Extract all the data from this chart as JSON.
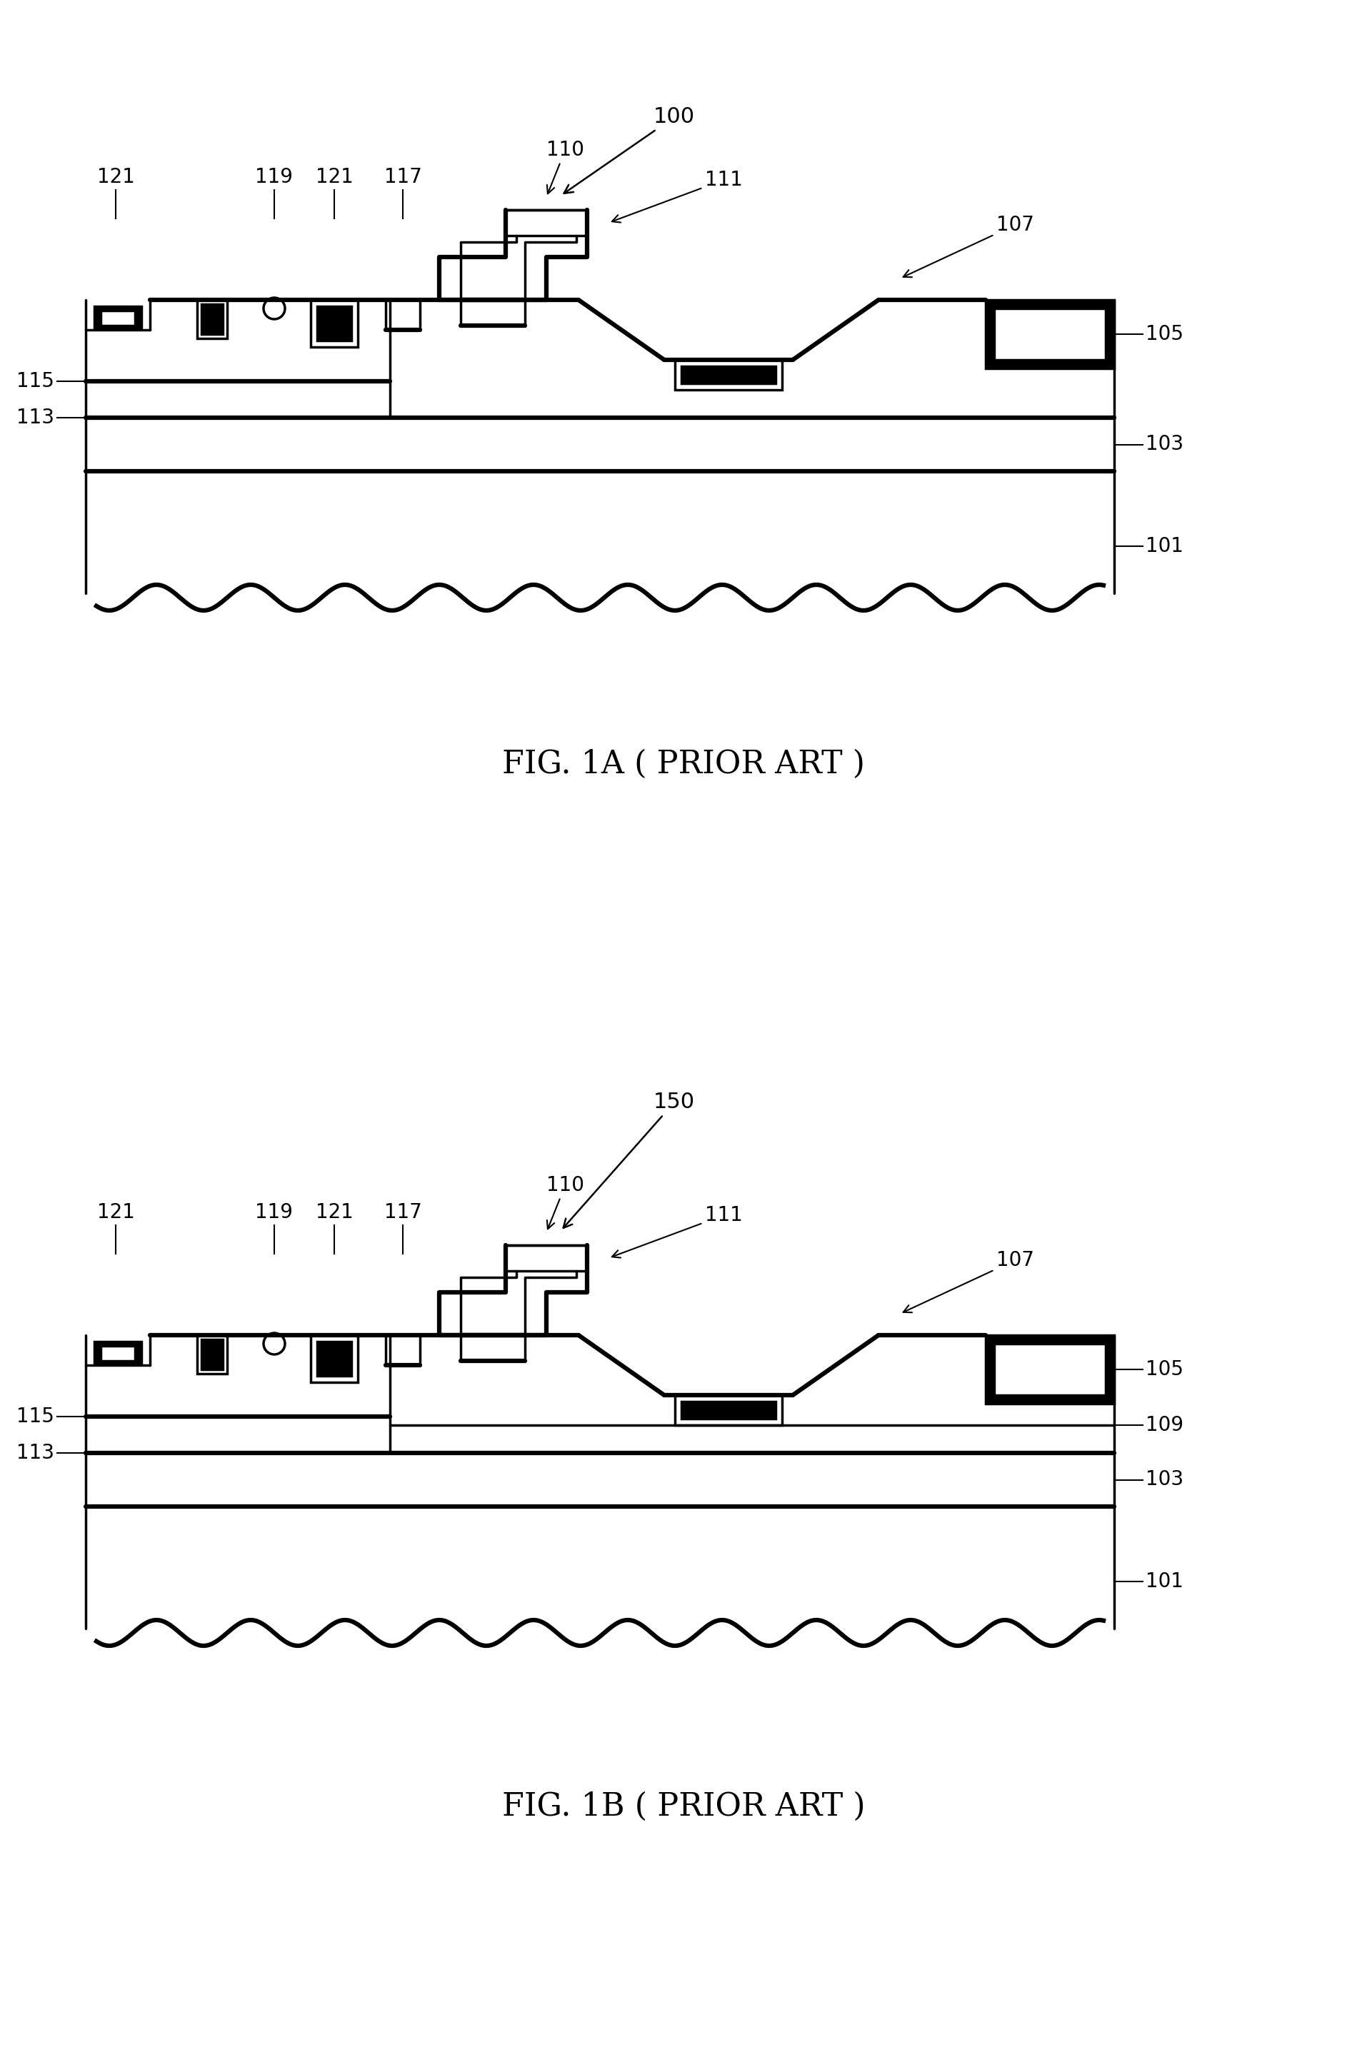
{
  "fig_width": 19.14,
  "fig_height": 28.88,
  "bg_color": "#ffffff",
  "line_color": "#000000",
  "lw": 2.5,
  "lw_thick": 4.5,
  "lw_label": 1.5,
  "fig1a_title": "FIG. 1A ( PRIOR ART )",
  "fig1b_title": "FIG. 1B ( PRIOR ART )",
  "title_fontsize": 32,
  "label_fontsize": 20,
  "fig1a_label": "100",
  "fig1b_label": "150"
}
